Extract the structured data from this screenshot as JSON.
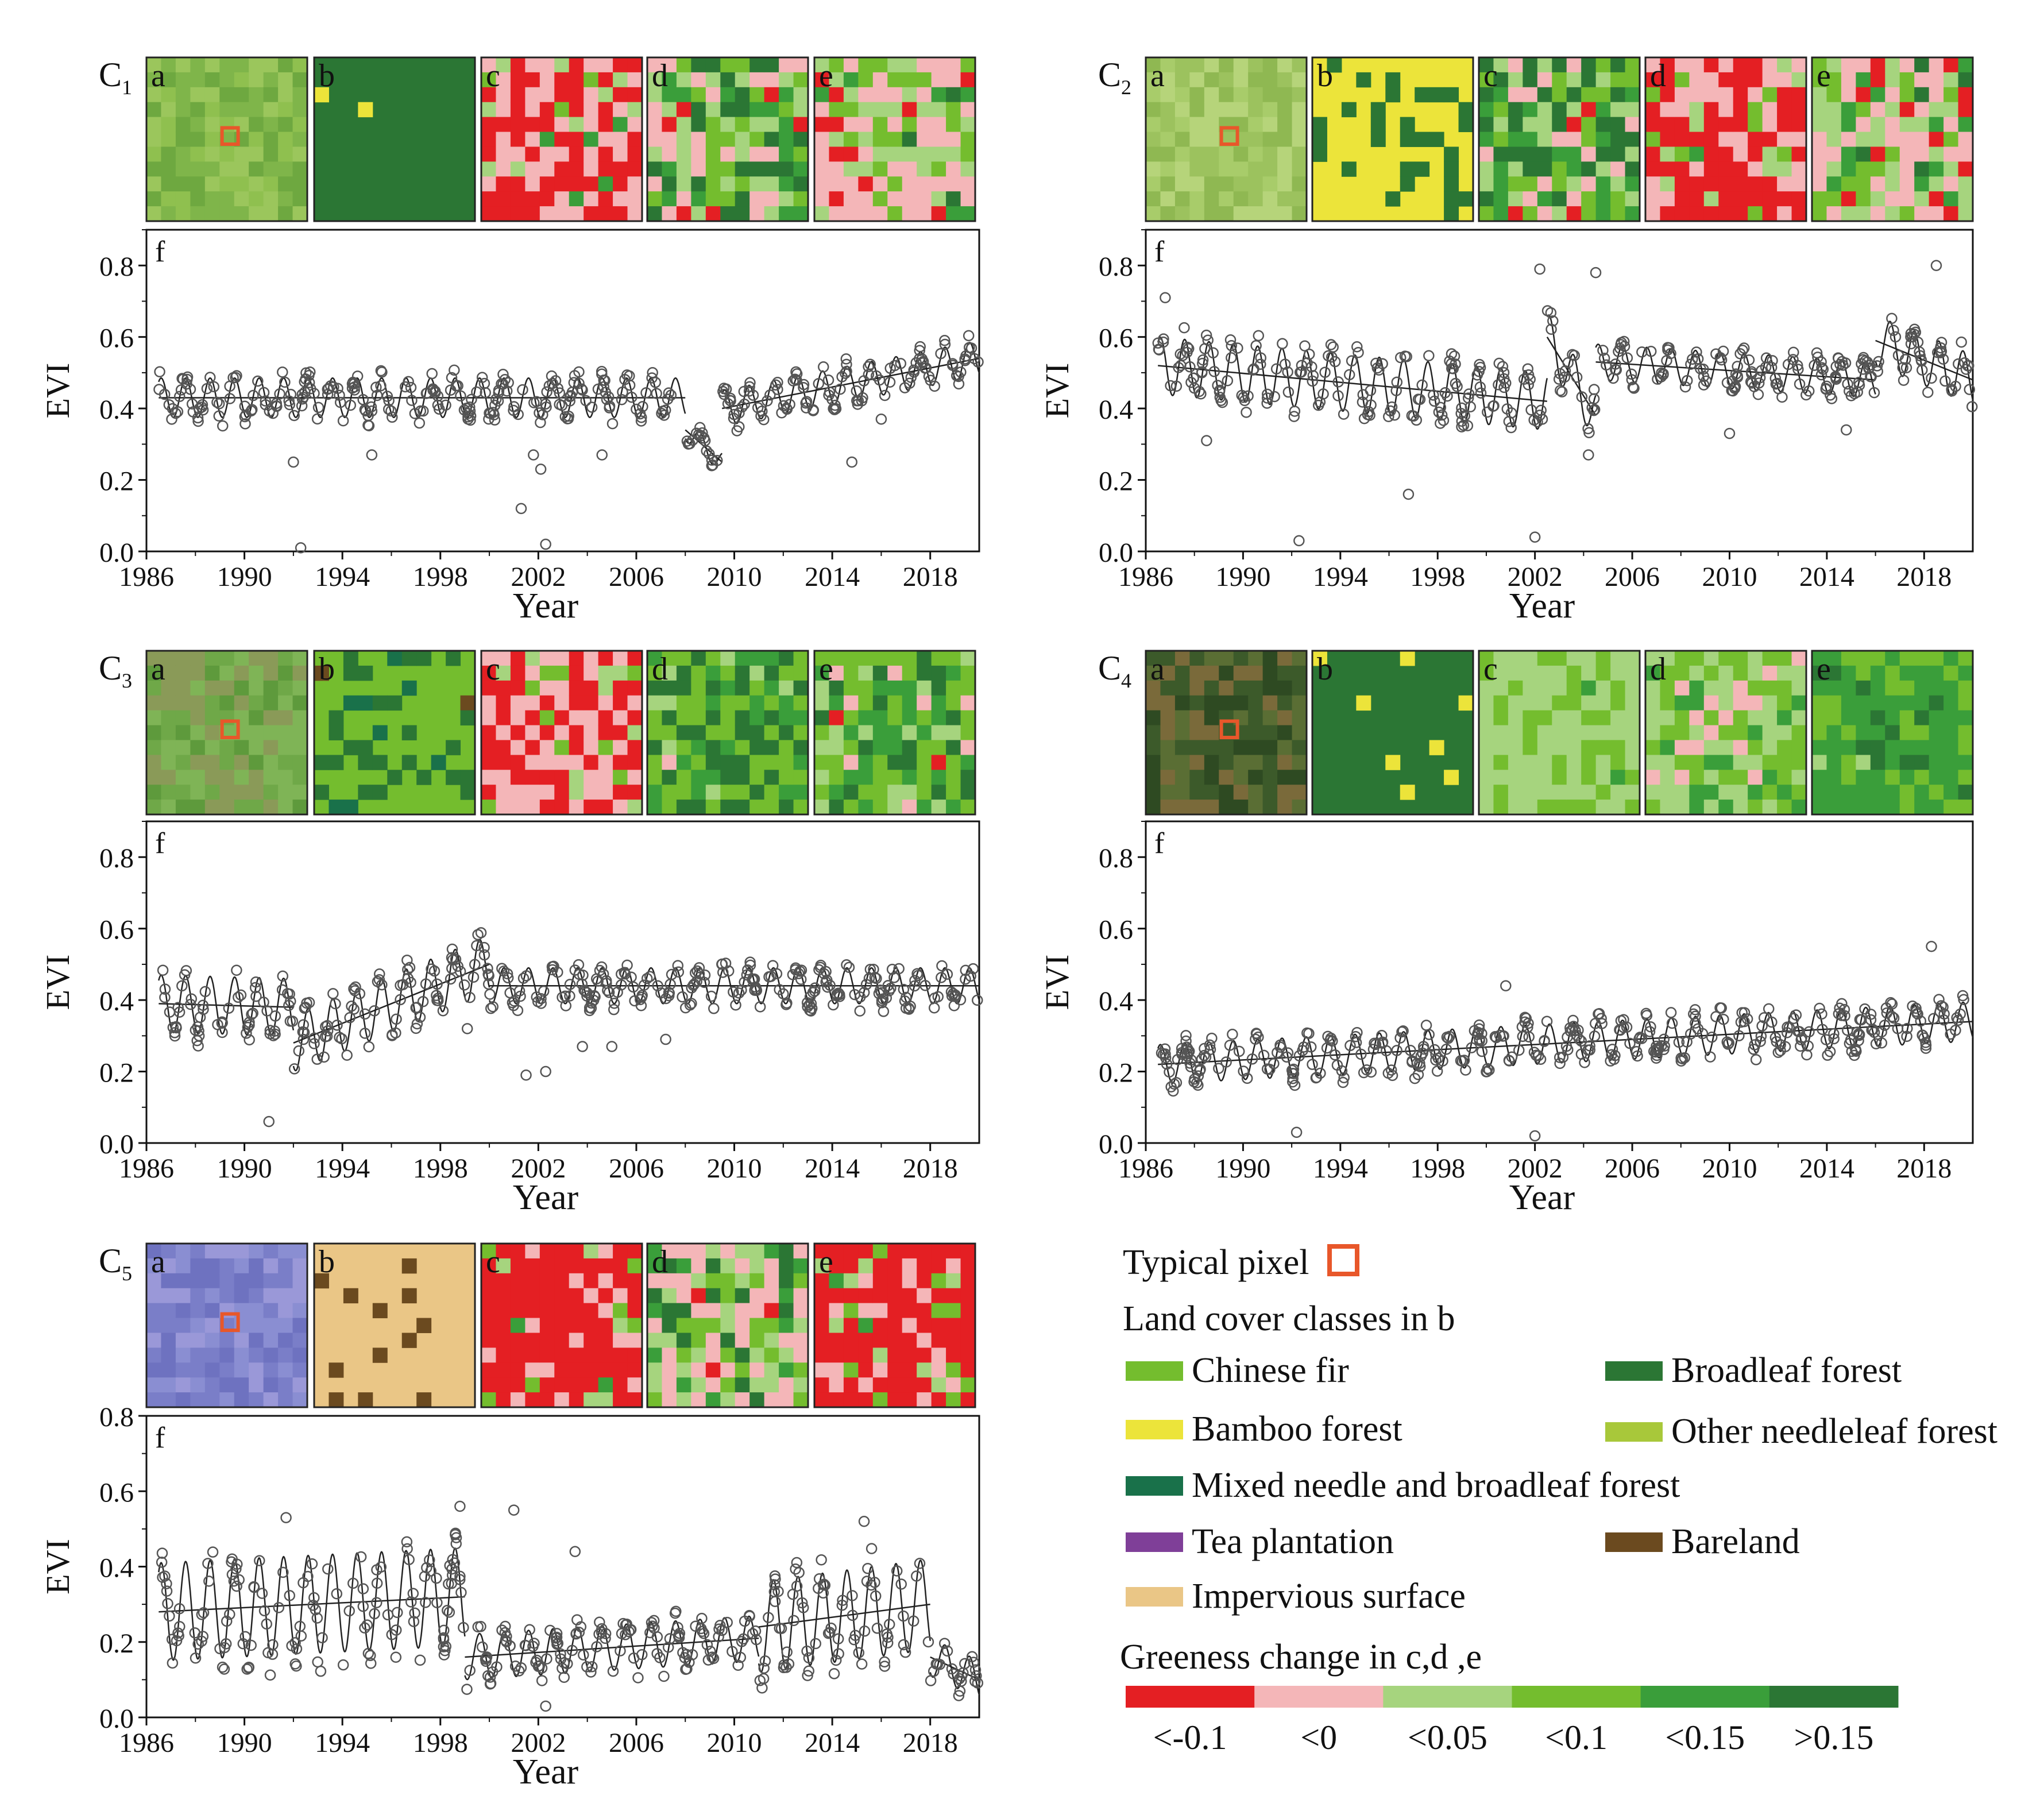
{
  "colors": {
    "red": "#e41f23",
    "pink": "#f4b6b8",
    "light_green": "#a6d47e",
    "mid_green": "#74bd2e",
    "green": "#3a9e3a",
    "dark_green": "#2b7634",
    "bamboo": "#ece43a",
    "other_needle": "#a8c83a",
    "mixed": "#19714a",
    "tea": "#7f3f98",
    "bareland": "#6b4a1f",
    "impervious": "#eac686",
    "pixel_marker": "#e8572a",
    "curve": "#222222",
    "marker": "#555555"
  },
  "panel_letters": {
    "a": "a",
    "b": "b",
    "c": "c",
    "d": "d",
    "e": "e",
    "f": "f"
  },
  "chart_data": [
    {
      "id": "C1",
      "label": "C",
      "subscript": "1",
      "type": "scatter",
      "xlabel": "Year",
      "ylabel": "EVI",
      "xlim": [
        1986,
        2020
      ],
      "ylim": [
        0,
        0.9
      ],
      "xticks": [
        "1986",
        "1990",
        "1994",
        "1998",
        "2002",
        "2006",
        "2010",
        "2014",
        "2018"
      ],
      "yticks": [
        "0.0",
        "0.2",
        "0.4",
        "0.6",
        "0.8"
      ],
      "segments": [
        {
          "start": 1986.5,
          "end": 2008.0,
          "trend": [
            0.43,
            0.43
          ],
          "amp": 0.055
        },
        {
          "start": 2008.0,
          "end": 2009.5,
          "trend": [
            0.34,
            0.25
          ],
          "amp": 0.03
        },
        {
          "start": 2009.5,
          "end": 2020.0,
          "trend": [
            0.4,
            0.54
          ],
          "amp": 0.05
        }
      ],
      "outliers": [
        [
          1992.0,
          0.25
        ],
        [
          1992.3,
          0.01
        ],
        [
          1995.2,
          0.27
        ],
        [
          2001.3,
          0.12
        ],
        [
          2001.8,
          0.27
        ],
        [
          2002.1,
          0.23
        ],
        [
          2002.3,
          0.02
        ],
        [
          2014.8,
          0.25
        ],
        [
          2016.0,
          0.37
        ],
        [
          2004.6,
          0.27
        ]
      ]
    },
    {
      "id": "C2",
      "label": "C",
      "subscript": "2",
      "type": "scatter",
      "xlabel": "Year",
      "ylabel": "EVI",
      "xlim": [
        1986,
        2020
      ],
      "ylim": [
        0,
        0.9
      ],
      "xticks": [
        "1986",
        "1990",
        "1994",
        "1998",
        "2002",
        "2006",
        "2010",
        "2014",
        "2018"
      ],
      "yticks": [
        "0.0",
        "0.2",
        "0.4",
        "0.6",
        "0.8"
      ],
      "segments": [
        {
          "start": 1986.5,
          "end": 2002.5,
          "trend": [
            0.52,
            0.42
          ],
          "amp": 0.08
        },
        {
          "start": 2002.5,
          "end": 2004.5,
          "trend": [
            0.6,
            0.38
          ],
          "amp": 0.07
        },
        {
          "start": 2004.5,
          "end": 2016.0,
          "trend": [
            0.53,
            0.48
          ],
          "amp": 0.05
        },
        {
          "start": 2016.0,
          "end": 2020.0,
          "trend": [
            0.59,
            0.48
          ],
          "amp": 0.07
        }
      ],
      "outliers": [
        [
          1988.5,
          0.31
        ],
        [
          1992.3,
          0.03
        ],
        [
          1996.8,
          0.16
        ],
        [
          2002.0,
          0.04
        ],
        [
          2002.2,
          0.79
        ],
        [
          2004.2,
          0.27
        ],
        [
          2004.5,
          0.78
        ],
        [
          2018.5,
          0.8
        ],
        [
          2010.0,
          0.33
        ],
        [
          1986.8,
          0.71
        ],
        [
          2014.8,
          0.34
        ]
      ]
    },
    {
      "id": "C3",
      "label": "C",
      "subscript": "3",
      "type": "scatter",
      "xlabel": "Year",
      "ylabel": "EVI",
      "xlim": [
        1986,
        2020
      ],
      "ylim": [
        0,
        0.9
      ],
      "xticks": [
        "1986",
        "1990",
        "1994",
        "1998",
        "2002",
        "2006",
        "2010",
        "2014",
        "2018"
      ],
      "yticks": [
        "0.0",
        "0.2",
        "0.4",
        "0.6",
        "0.8"
      ],
      "segments": [
        {
          "start": 1986.5,
          "end": 1992.0,
          "trend": [
            0.39,
            0.38
          ],
          "amp": 0.08
        },
        {
          "start": 1992.0,
          "end": 2000.0,
          "trend": [
            0.28,
            0.5
          ],
          "amp": 0.08
        },
        {
          "start": 2000.0,
          "end": 2020.0,
          "trend": [
            0.44,
            0.44
          ],
          "amp": 0.05
        }
      ],
      "outliers": [
        [
          1991.0,
          0.06
        ],
        [
          2001.5,
          0.19
        ],
        [
          2002.3,
          0.2
        ],
        [
          2003.8,
          0.27
        ],
        [
          2005.0,
          0.27
        ],
        [
          1999.1,
          0.32
        ],
        [
          2007.2,
          0.29
        ]
      ]
    },
    {
      "id": "C4",
      "label": "C",
      "subscript": "4",
      "type": "scatter",
      "xlabel": "Year",
      "ylabel": "EVI",
      "xlim": [
        1986,
        2020
      ],
      "ylim": [
        0,
        0.9
      ],
      "xticks": [
        "1986",
        "1990",
        "1994",
        "1998",
        "2002",
        "2006",
        "2010",
        "2014",
        "2018"
      ],
      "yticks": [
        "0.0",
        "0.2",
        "0.4",
        "0.6",
        "0.8"
      ],
      "segments": [
        {
          "start": 1986.5,
          "end": 2020.0,
          "trend": [
            0.22,
            0.34
          ],
          "amp": 0.055
        }
      ],
      "outliers": [
        [
          1992.2,
          0.03
        ],
        [
          2002.0,
          0.02
        ],
        [
          2018.3,
          0.55
        ],
        [
          2000.8,
          0.44
        ]
      ]
    },
    {
      "id": "C5",
      "label": "C",
      "subscript": "5",
      "type": "scatter",
      "xlabel": "Year",
      "ylabel": "EVI",
      "xlim": [
        1986,
        2020
      ],
      "ylim": [
        0,
        0.8
      ],
      "xticks": [
        "1986",
        "1990",
        "1994",
        "1998",
        "2002",
        "2006",
        "2010",
        "2014",
        "2018"
      ],
      "yticks": [
        "0.0",
        "0.2",
        "0.4",
        "0.6",
        "0.8"
      ],
      "segments": [
        {
          "start": 1986.5,
          "end": 1999.0,
          "trend": [
            0.28,
            0.32
          ],
          "amp": 0.13
        },
        {
          "start": 1999.0,
          "end": 2011.0,
          "trend": [
            0.16,
            0.21
          ],
          "amp": 0.06
        },
        {
          "start": 2011.0,
          "end": 2018.0,
          "trend": [
            0.24,
            0.3
          ],
          "amp": 0.12
        },
        {
          "start": 2018.0,
          "end": 2020.0,
          "trend": [
            0.16,
            0.1
          ],
          "amp": 0.05
        }
      ],
      "outliers": [
        [
          2001.0,
          0.55
        ],
        [
          2002.3,
          0.03
        ],
        [
          2003.5,
          0.44
        ],
        [
          1998.8,
          0.56
        ],
        [
          1991.7,
          0.53
        ],
        [
          2015.3,
          0.52
        ]
      ]
    }
  ],
  "legend": {
    "typical_pixel": "Typical pixel",
    "land_cover_title": "Land cover classes in b",
    "classes": {
      "chinese_fir": "Chinese fir",
      "broadleaf": "Broadleaf forest",
      "bamboo": "Bamboo forest",
      "other_needleleaf": "Other needleleaf forest",
      "mixed": "Mixed needle and broadleaf forest",
      "tea": "Tea plantation",
      "bareland": "Bareland",
      "impervious": "Impervious surface"
    },
    "greeness_title": "Greeness change in c,d ,e",
    "scale_labels": [
      "<-0.1",
      "<0",
      "<0.05",
      "<0.1",
      "<0.15",
      ">0.15"
    ]
  }
}
